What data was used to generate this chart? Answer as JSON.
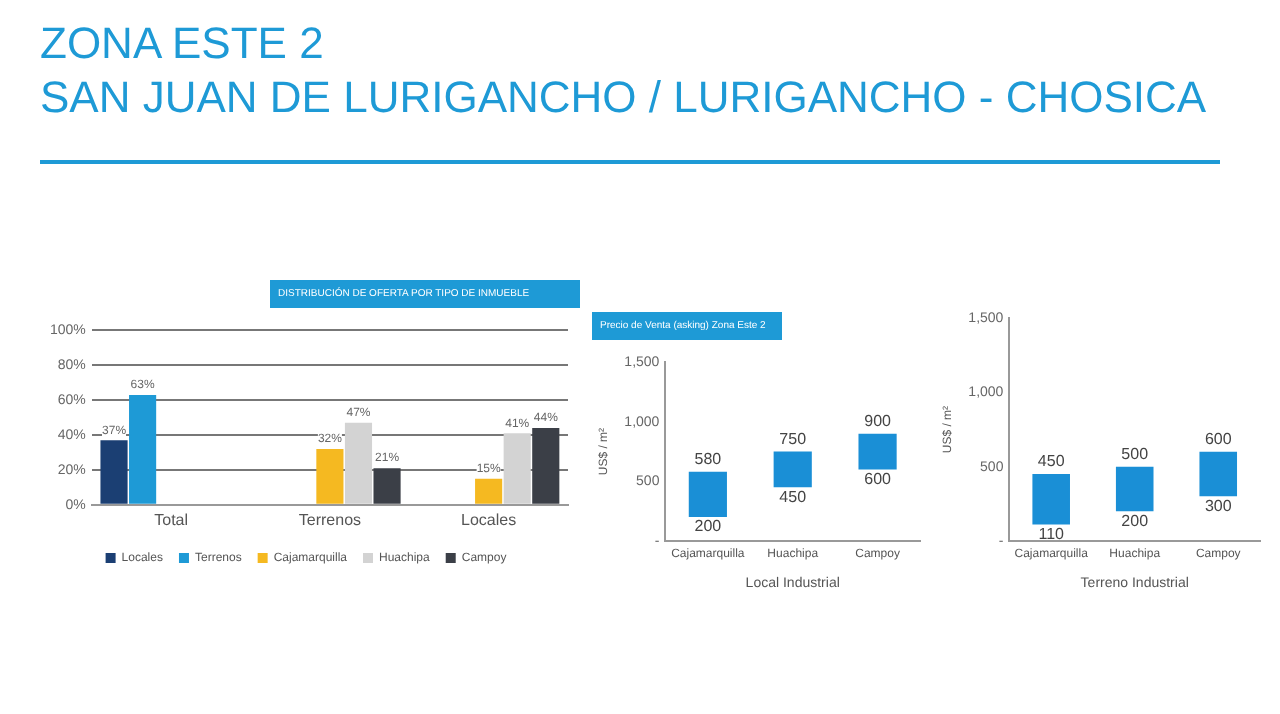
{
  "chart_data": [
    {
      "type": "other",
      "title": "ZONA ESTE 2",
      "subtitle": "SAN JUAN DE LURIGANCHO / LURIGANCHO - CHOSICA"
    },
    {
      "type": "bar",
      "title": "DISTRIBUCIÓN DE OFERTA POR TIPO DE INMUEBLE",
      "categories": [
        "Total",
        "Terrenos",
        "Locales"
      ],
      "series": [
        {
          "name": "Locales",
          "color": "#1b3f73",
          "values": [
            37,
            null,
            null
          ],
          "value_labels": [
            "37%",
            null,
            null
          ]
        },
        {
          "name": "Terrenos",
          "color": "#1e9ad6",
          "values": [
            63,
            null,
            null
          ],
          "value_labels": [
            "63%",
            null,
            null
          ]
        },
        {
          "name": "Cajamarquilla",
          "color": "#f5b921",
          "values": [
            null,
            32,
            15
          ],
          "value_labels": [
            null,
            "32%",
            "15%"
          ]
        },
        {
          "name": "Huachipa",
          "color": "#d3d3d3",
          "values": [
            null,
            47,
            41
          ],
          "value_labels": [
            null,
            "47%",
            "41%"
          ]
        },
        {
          "name": "Campoy",
          "color": "#3b3f47",
          "values": [
            null,
            21,
            44
          ],
          "value_labels": [
            null,
            "21%",
            "44%"
          ]
        }
      ],
      "ylim": [
        0,
        100
      ],
      "yticks": [
        {
          "value": 0,
          "label": "0%"
        },
        {
          "value": 20,
          "label": "20%"
        },
        {
          "value": 40,
          "label": "40%"
        },
        {
          "value": 60,
          "label": "60%"
        },
        {
          "value": 80,
          "label": "80%"
        },
        {
          "value": 100,
          "label": "100%"
        }
      ],
      "grid": "y",
      "legend": "bottom"
    },
    {
      "type": "bar",
      "title": "Precio de Venta (asking) Zona Este 2",
      "xlabel": "Local Industrial",
      "ylabel": "US$ / m²",
      "categories": [
        "Cajamarquilla",
        "Huachipa",
        "Campoy"
      ],
      "values": [
        380,
        300,
        300
      ],
      "base": [
        200,
        450,
        600
      ],
      "color": "#1a8fd6",
      "ylim": [
        0,
        1500
      ],
      "yticks": [
        {
          "value": 0,
          "label": "-"
        },
        500,
        {
          "value": 1000,
          "label": "1,000"
        },
        {
          "value": 1500,
          "label": "1,500"
        }
      ],
      "annotations": [
        {
          "text": "580",
          "x": "Cajamarquilla",
          "y": 580
        },
        {
          "text": "200",
          "x": "Cajamarquilla",
          "y": 200
        },
        {
          "text": "750",
          "x": "Huachipa",
          "y": 750
        },
        {
          "text": "450",
          "x": "Huachipa",
          "y": 450
        },
        {
          "text": "900",
          "x": "Campoy",
          "y": 900
        },
        {
          "text": "600",
          "x": "Campoy",
          "y": 600
        }
      ]
    },
    {
      "type": "bar",
      "xlabel": "Terreno Industrial",
      "ylabel": "US$ / m²",
      "categories": [
        "Cajamarquilla",
        "Huachipa",
        "Campoy"
      ],
      "values": [
        340,
        300,
        300
      ],
      "base": [
        110,
        200,
        300
      ],
      "color": "#1a8fd6",
      "ylim": [
        0,
        1500
      ],
      "yticks": [
        {
          "value": 0,
          "label": "-"
        },
        500,
        {
          "value": 1000,
          "label": "1,000"
        },
        {
          "value": 1500,
          "label": "1,500"
        }
      ],
      "annotations": [
        {
          "text": "450",
          "x": "Cajamarquilla",
          "y": 450
        },
        {
          "text": "110",
          "x": "Cajamarquilla",
          "y": 110
        },
        {
          "text": "500",
          "x": "Huachipa",
          "y": 500
        },
        {
          "text": "200",
          "x": "Huachipa",
          "y": 200
        },
        {
          "text": "600",
          "x": "Campoy",
          "y": 600
        },
        {
          "text": "300",
          "x": "Campoy",
          "y": 300
        }
      ]
    }
  ]
}
